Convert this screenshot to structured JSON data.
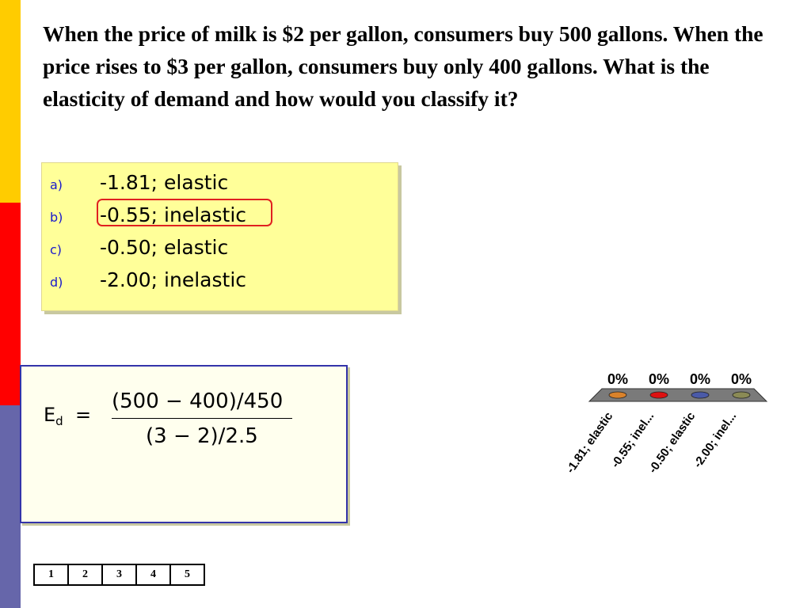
{
  "question": "When the price of milk is $2 per gallon, consumers buy 500 gallons.  When the price rises to $3 per gallon, consumers buy only 400 gallons.  What is the elasticity of demand and how would you classify it?",
  "answers": [
    {
      "letter": "a)",
      "text": "-1.81; elastic"
    },
    {
      "letter": "b)",
      "text": "-0.55; inelastic",
      "correct": true
    },
    {
      "letter": "c)",
      "text": "-0.50; elastic"
    },
    {
      "letter": "d)",
      "text": "-2.00; inelastic"
    }
  ],
  "formula": {
    "label": "E",
    "subscript": "d",
    "equals": "=",
    "numerator": "(500 − 400)/450",
    "denominator": "(3 − 2)/2.5"
  },
  "nav": {
    "pages": [
      "1",
      "2",
      "3",
      "4",
      "5"
    ]
  },
  "colors": {
    "sidebar_top": "#ffcc00",
    "sidebar_mid": "#ff0000",
    "sidebar_bottom": "#6666aa",
    "answers_bg": "#ffff99",
    "formula_border": "#3333aa",
    "correct_marker": "#e02020"
  },
  "chart_data": {
    "type": "bar",
    "categories": [
      "-1.81; elastic",
      "-0.55; inel...",
      "-0.50; elastic",
      "-2.00; inel..."
    ],
    "values": [
      0,
      0,
      0,
      0
    ],
    "value_labels": [
      "0%",
      "0%",
      "0%",
      "0%"
    ],
    "series_colors": [
      "#d9822b",
      "#dd1111",
      "#4a5aa8",
      "#8a8a55"
    ],
    "ylim": [
      0,
      100
    ]
  }
}
